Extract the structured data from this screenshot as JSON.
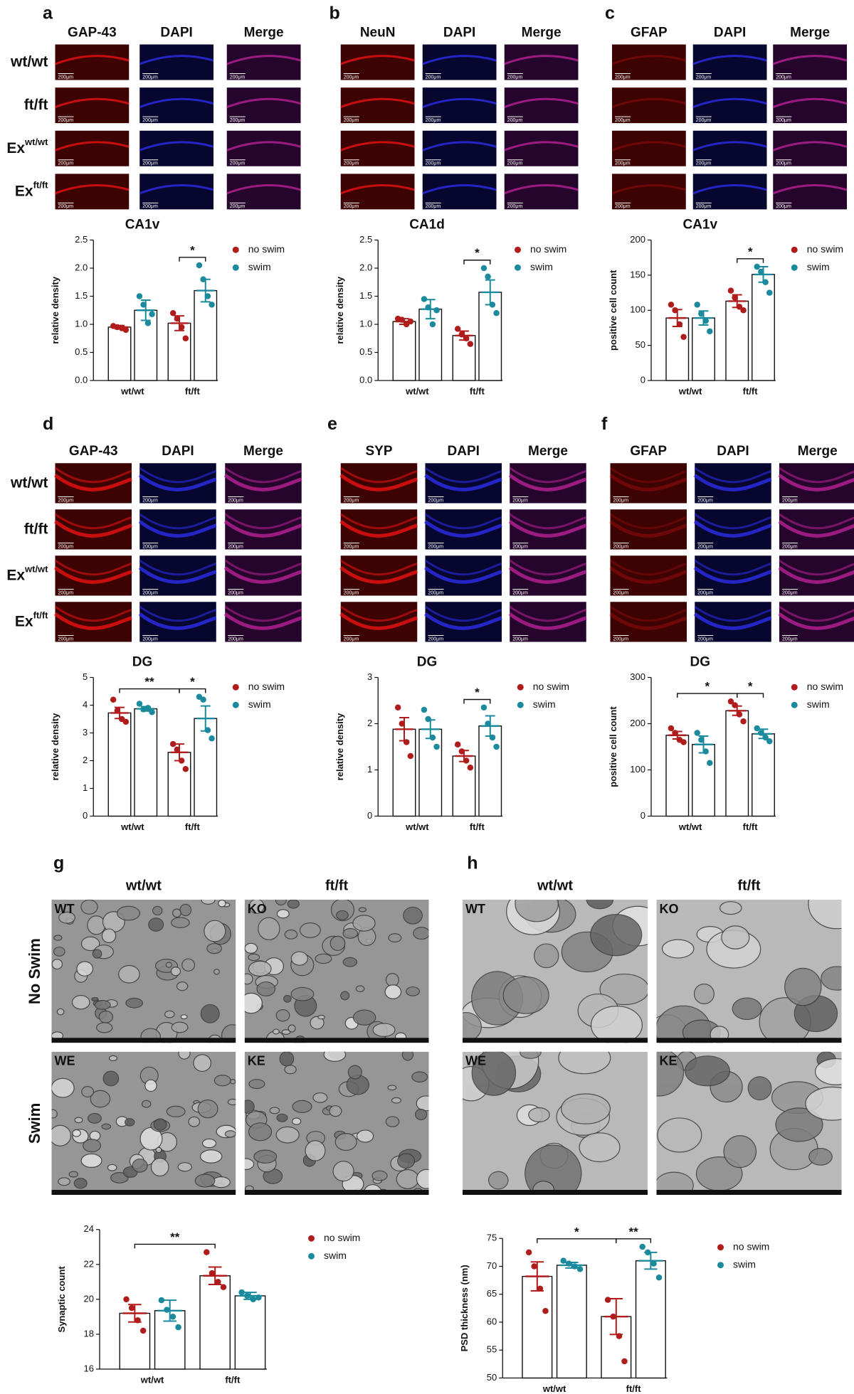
{
  "panels": [
    {
      "letter": "a",
      "columns": [
        "GAP-43",
        "DAPI",
        "Merge"
      ],
      "rows": [
        {
          "text": "wt/wt"
        },
        {
          "text": "ft/ft"
        },
        {
          "text": "Ex",
          "sup": "wt/wt"
        },
        {
          "text": "Ex",
          "sup": "ft/ft"
        }
      ],
      "scale_bar": "200μm"
    },
    {
      "letter": "b",
      "columns": [
        "NeuN",
        "DAPI",
        "Merge"
      ],
      "scale_bar": "200μm"
    },
    {
      "letter": "c",
      "columns": [
        "GFAP",
        "DAPI",
        "Merge"
      ],
      "scale_bar": "200μm"
    },
    {
      "letter": "d",
      "columns": [
        "GAP-43",
        "DAPI",
        "Merge"
      ],
      "rows": [
        {
          "text": "wt/wt"
        },
        {
          "text": "ft/ft"
        },
        {
          "text": "Ex",
          "sup": "wt/wt"
        },
        {
          "text": "Ex",
          "sup": "ft/ft"
        }
      ],
      "scale_bar": "200μm"
    },
    {
      "letter": "e",
      "columns": [
        "SYP",
        "DAPI",
        "Merge"
      ],
      "scale_bar": "200μm"
    },
    {
      "letter": "f",
      "columns": [
        "GFAP",
        "DAPI",
        "Merge"
      ],
      "scale_bar": "200μm"
    }
  ],
  "em_panels": [
    {
      "letter": "g",
      "columns": [
        "wt/wt",
        "ft/ft"
      ],
      "rows": [
        "No Swim",
        "Swim"
      ],
      "image_labels": [
        "WT",
        "KO",
        "WE",
        "KE"
      ]
    },
    {
      "letter": "h",
      "columns": [
        "wt/wt",
        "ft/ft"
      ],
      "image_labels": [
        "WT",
        "KO",
        "WE",
        "KE"
      ]
    }
  ],
  "chart_data": [
    {
      "type": "bar",
      "title": "CA1v",
      "y_label": "relative density",
      "categories": [
        "wt/wt",
        "ft/ft"
      ],
      "series": [
        {
          "name": "no swim",
          "color": "#b01c1c",
          "values": [
            0.95,
            1.02
          ],
          "errors": [
            0.03,
            0.13
          ],
          "points": [
            [
              0.97,
              0.95,
              0.93,
              0.9
            ],
            [
              1.2,
              1.1,
              0.95,
              0.75
            ]
          ]
        },
        {
          "name": "swim",
          "color": "#1b8a9c",
          "values": [
            1.25,
            1.6
          ],
          "errors": [
            0.18,
            0.2
          ],
          "points": [
            [
              1.5,
              1.35,
              1.02,
              1.18
            ],
            [
              2.05,
              1.8,
              1.5,
              1.35
            ]
          ]
        }
      ],
      "ylim": [
        0,
        2.5
      ],
      "yticks": [
        {
          "value": 0,
          "label": "0.0"
        },
        0.5,
        {
          "value": 1,
          "label": "1.0"
        },
        1.5,
        {
          "value": 2,
          "label": "2.0"
        },
        2.5
      ],
      "comparisons": [
        {
          "label": "*",
          "between": [
            [
              1,
              0
            ],
            [
              1,
              1
            ]
          ]
        }
      ]
    },
    {
      "type": "bar",
      "title": "CA1d",
      "y_label": "relative density",
      "categories": [
        "wt/wt",
        "ft/ft"
      ],
      "series": [
        {
          "name": "no swim",
          "color": "#b01c1c",
          "values": [
            1.05,
            0.8
          ],
          "errors": [
            0.05,
            0.08
          ],
          "points": [
            [
              1.1,
              1.08,
              1.0,
              1.05
            ],
            [
              0.92,
              0.82,
              0.75,
              0.65
            ]
          ]
        },
        {
          "name": "swim",
          "color": "#1b8a9c",
          "values": [
            1.27,
            1.57
          ],
          "errors": [
            0.17,
            0.22
          ],
          "points": [
            [
              1.45,
              1.3,
              1.0,
              1.25
            ],
            [
              2.0,
              1.85,
              1.35,
              1.2
            ]
          ]
        }
      ],
      "ylim": [
        0,
        2.5
      ],
      "yticks": [
        {
          "value": 0,
          "label": "0.0"
        },
        0.5,
        {
          "value": 1,
          "label": "1.0"
        },
        1.5,
        {
          "value": 2,
          "label": "2.0"
        },
        2.5
      ],
      "comparisons": [
        {
          "label": "*",
          "between": [
            [
              1,
              0
            ],
            [
              1,
              1
            ]
          ]
        }
      ]
    },
    {
      "type": "bar",
      "title": "CA1v",
      "y_label": "positive cell count",
      "categories": [
        "wt/wt",
        "ft/ft"
      ],
      "series": [
        {
          "name": "no swim",
          "color": "#b01c1c",
          "values": [
            89,
            113
          ],
          "errors": [
            12,
            9
          ],
          "points": [
            [
              108,
              100,
              80,
              62
            ],
            [
              128,
              118,
              105,
              100
            ]
          ]
        },
        {
          "name": "swim",
          "color": "#1b8a9c",
          "values": [
            89,
            151
          ],
          "errors": [
            10,
            11
          ],
          "points": [
            [
              108,
              95,
              85,
              70
            ],
            [
              162,
              155,
              140,
              125
            ]
          ]
        }
      ],
      "ylim": [
        0,
        200
      ],
      "yticks": [
        0,
        50,
        100,
        150,
        200
      ],
      "comparisons": [
        {
          "label": "*",
          "between": [
            [
              1,
              0
            ],
            [
              1,
              1
            ]
          ]
        }
      ]
    },
    {
      "type": "bar",
      "title": "DG",
      "y_label": "relative density",
      "categories": [
        "wt/wt",
        "ft/ft"
      ],
      "series": [
        {
          "name": "no swim",
          "color": "#b01c1c",
          "values": [
            3.72,
            2.3
          ],
          "errors": [
            0.2,
            0.3
          ],
          "points": [
            [
              4.2,
              3.8,
              3.5,
              3.4
            ],
            [
              2.6,
              2.4,
              2.0,
              1.7
            ]
          ]
        },
        {
          "name": "swim",
          "color": "#1b8a9c",
          "values": [
            3.87,
            3.52
          ],
          "errors": [
            0.08,
            0.45
          ],
          "points": [
            [
              4.05,
              3.85,
              3.9,
              3.75
            ],
            [
              4.3,
              4.2,
              3.1,
              2.8
            ]
          ]
        }
      ],
      "ylim": [
        0,
        5
      ],
      "yticks": [
        0,
        1,
        2,
        3,
        4,
        5
      ],
      "comparisons": [
        {
          "label": "**",
          "between": [
            [
              0,
              0
            ],
            [
              1,
              0
            ]
          ]
        },
        {
          "label": "*",
          "between": [
            [
              1,
              0
            ],
            [
              1,
              1
            ]
          ]
        }
      ]
    },
    {
      "type": "bar",
      "title": "DG",
      "y_label": "relative density",
      "categories": [
        "wt/wt",
        "ft/ft"
      ],
      "series": [
        {
          "name": "no swim",
          "color": "#b01c1c",
          "values": [
            1.88,
            1.3
          ],
          "errors": [
            0.25,
            0.12
          ],
          "points": [
            [
              2.35,
              2.0,
              1.6,
              1.3
            ],
            [
              1.55,
              1.4,
              1.2,
              1.05
            ]
          ]
        },
        {
          "name": "swim",
          "color": "#1b8a9c",
          "values": [
            1.88,
            1.95
          ],
          "errors": [
            0.2,
            0.22
          ],
          "points": [
            [
              2.3,
              2.1,
              1.7,
              1.5
            ],
            [
              2.35,
              2.0,
              1.7,
              1.5
            ]
          ]
        }
      ],
      "ylim": [
        0,
        3
      ],
      "yticks": [
        0,
        1,
        2,
        3
      ],
      "comparisons": [
        {
          "label": "*",
          "between": [
            [
              1,
              0
            ],
            [
              1,
              1
            ]
          ]
        }
      ]
    },
    {
      "type": "bar",
      "title": "DG",
      "y_label": "positive cell count",
      "categories": [
        "wt/wt",
        "ft/ft"
      ],
      "series": [
        {
          "name": "no swim",
          "color": "#b01c1c",
          "values": [
            175,
            228
          ],
          "errors": [
            8,
            10
          ],
          "points": [
            [
              190,
              180,
              165,
              160
            ],
            [
              248,
              240,
              220,
              205
            ]
          ]
        },
        {
          "name": "swim",
          "color": "#1b8a9c",
          "values": [
            155,
            178
          ],
          "errors": [
            18,
            10
          ],
          "points": [
            [
              180,
              165,
              140,
              115
            ],
            [
              190,
              180,
              170,
              162
            ]
          ]
        }
      ],
      "ylim": [
        0,
        300
      ],
      "yticks": [
        0,
        100,
        200,
        300
      ],
      "comparisons": [
        {
          "label": "*",
          "between": [
            [
              0,
              0
            ],
            [
              1,
              0
            ]
          ]
        },
        {
          "label": "*",
          "between": [
            [
              1,
              0
            ],
            [
              1,
              1
            ]
          ]
        }
      ]
    },
    {
      "type": "bar",
      "y_label": "Synaptic count",
      "categories": [
        "wt/wt",
        "ft/ft"
      ],
      "series": [
        {
          "name": "no swim",
          "color": "#b01c1c",
          "values": [
            19.2,
            21.35
          ],
          "errors": [
            0.5,
            0.5
          ],
          "points": [
            [
              20.0,
              19.5,
              18.8,
              18.2
            ],
            [
              22.7,
              21.5,
              21.0,
              20.7
            ]
          ]
        },
        {
          "name": "swim",
          "color": "#1b8a9c",
          "values": [
            19.35,
            20.2
          ],
          "errors": [
            0.6,
            0.2
          ],
          "points": [
            [
              19.95,
              19.4,
              19.0,
              18.4
            ],
            [
              20.4,
              20.2,
              20.0,
              20.1
            ]
          ]
        }
      ],
      "ylim": [
        16,
        24
      ],
      "yticks": [
        16,
        18,
        20,
        22,
        24
      ],
      "comparisons": [
        {
          "label": "**",
          "between": [
            [
              0,
              0
            ],
            [
              1,
              0
            ]
          ]
        }
      ]
    },
    {
      "type": "bar",
      "y_label": "PSD thickness (nm)",
      "categories": [
        "wt/wt",
        "ft/ft"
      ],
      "series": [
        {
          "name": "no swim",
          "color": "#b01c1c",
          "values": [
            68.2,
            61
          ],
          "errors": [
            2.6,
            3.2
          ],
          "points": [
            [
              72.5,
              70,
              66,
              62
            ],
            [
              64,
              61,
              57.5,
              53
            ]
          ]
        },
        {
          "name": "swim",
          "color": "#1b8a9c",
          "values": [
            70.2,
            71
          ],
          "errors": [
            0.5,
            1.5
          ],
          "points": [
            [
              71,
              70.5,
              70,
              69.5
            ],
            [
              73.5,
              72.5,
              70.5,
              68
            ]
          ]
        }
      ],
      "ylim": [
        50,
        75
      ],
      "yticks": [
        50,
        55,
        60,
        65,
        70,
        75
      ],
      "comparisons": [
        {
          "label": "*",
          "between": [
            [
              0,
              0
            ],
            [
              1,
              0
            ]
          ]
        },
        {
          "label": "**",
          "between": [
            [
              1,
              0
            ],
            [
              1,
              1
            ]
          ]
        }
      ]
    }
  ]
}
